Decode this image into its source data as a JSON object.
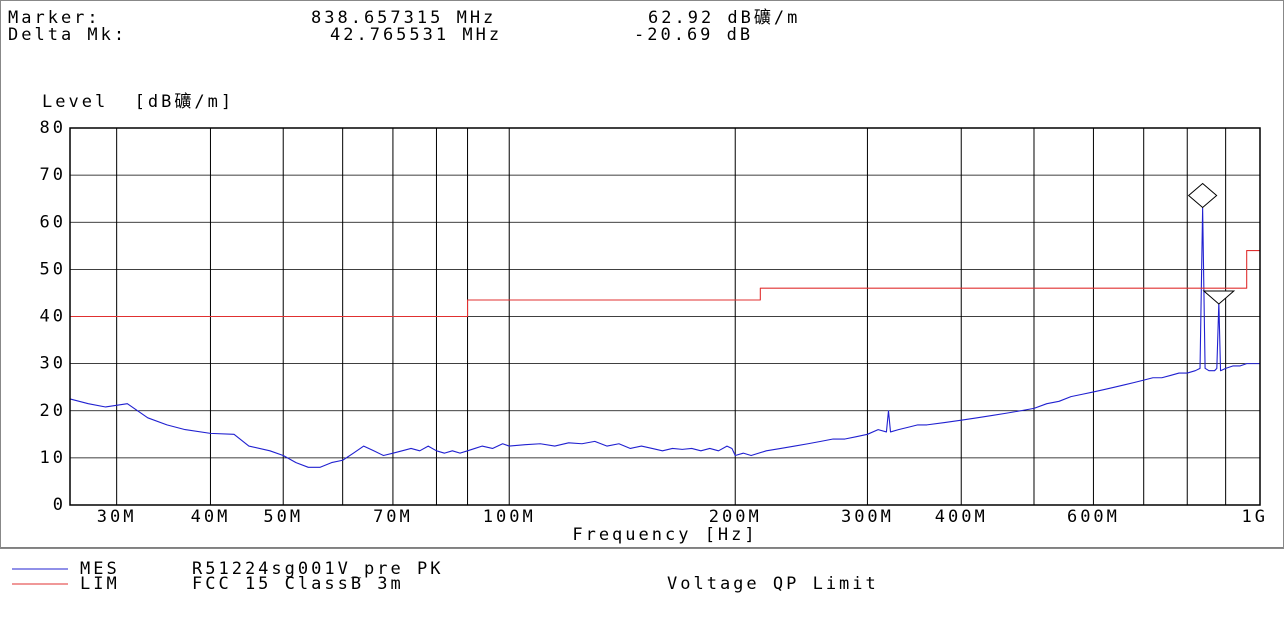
{
  "header": {
    "marker_label": "Marker:",
    "marker_freq": "838.657315 MHz",
    "marker_level": "62.92 dB礦/m",
    "delta_label": "Delta Mk:",
    "delta_freq": "42.765531 MHz",
    "delta_level": "-20.69 dB"
  },
  "legend": {
    "items": [
      {
        "code": "MES",
        "text": "R51224sg001V_pre  PK",
        "color": "#2020d0"
      },
      {
        "code": "LIM",
        "text": "FCC 15 ClassB 3m",
        "extra": "Voltage QP Limit",
        "color": "#e03030"
      }
    ]
  },
  "chart_data": {
    "type": "line",
    "ylabel": "Level  [dB礦/m]",
    "xlabel": "Frequency  [Hz]",
    "x_scale": "log",
    "xlim": [
      26000000,
      1000000000
    ],
    "ylim": [
      0,
      80
    ],
    "y_ticks": [
      0,
      10,
      20,
      30,
      40,
      50,
      60,
      70,
      80
    ],
    "x_ticks": [
      {
        "label": "30M",
        "value": 30000000
      },
      {
        "label": "40M",
        "value": 40000000
      },
      {
        "label": "50M",
        "value": 50000000
      },
      {
        "label": "70M",
        "value": 70000000
      },
      {
        "label": "100M",
        "value": 100000000
      },
      {
        "label": "200M",
        "value": 200000000
      },
      {
        "label": "300M",
        "value": 300000000
      },
      {
        "label": "400M",
        "value": 400000000
      },
      {
        "label": "600M",
        "value": 600000000
      },
      {
        "label": "1G",
        "value": 1000000000
      }
    ],
    "grid_lines_mhz": [
      30,
      40,
      50,
      60,
      70,
      80,
      88,
      100,
      200,
      300,
      400,
      500,
      600,
      700,
      800,
      900
    ],
    "series": [
      {
        "name": "MES",
        "color": "#2020d0",
        "x": [
          26000000.0,
          27500000.0,
          29000000.0,
          31000000.0,
          33000000.0,
          35000000.0,
          37000000.0,
          40000000.0,
          43000000.0,
          45000000.0,
          48000000.0,
          50000000.0,
          52000000.0,
          54000000.0,
          56000000.0,
          58000000.0,
          60000000.0,
          62000000.0,
          64000000.0,
          66000000.0,
          68000000.0,
          70000000.0,
          72000000.0,
          74000000.0,
          76000000.0,
          78000000.0,
          80000000.0,
          82000000.0,
          84000000.0,
          86000000.0,
          88000000.0,
          90000000.0,
          92000000.0,
          95000000.0,
          98000000.0,
          100000000.0,
          105000000.0,
          110000000.0,
          115000000.0,
          120000000.0,
          125000000.0,
          130000000.0,
          135000000.0,
          140000000.0,
          145000000.0,
          150000000.0,
          155000000.0,
          160000000.0,
          165000000.0,
          170000000.0,
          175000000.0,
          180000000.0,
          185000000.0,
          190000000.0,
          195000000.0,
          198000000.0,
          200000000.0,
          205000000.0,
          210000000.0,
          220000000.0,
          230000000.0,
          240000000.0,
          250000000.0,
          260000000.0,
          270000000.0,
          280000000.0,
          290000000.0,
          300000000.0,
          310000000.0,
          318000000.0,
          320000000.0,
          322000000.0,
          330000000.0,
          340000000.0,
          350000000.0,
          360000000.0,
          380000000.0,
          400000000.0,
          420000000.0,
          440000000.0,
          460000000.0,
          480000000.0,
          500000000.0,
          520000000.0,
          540000000.0,
          560000000.0,
          580000000.0,
          600000000.0,
          620000000.0,
          640000000.0,
          660000000.0,
          680000000.0,
          700000000.0,
          720000000.0,
          740000000.0,
          760000000.0,
          780000000.0,
          800000000.0,
          820000000.0,
          832000000.0,
          838660000.0,
          845000000.0,
          855000000.0,
          870000000.0,
          876000000.0,
          881420000.0,
          886000000.0,
          900000000.0,
          920000000.0,
          940000000.0,
          960000000.0,
          980000000.0,
          1000000000.0
        ],
        "y": [
          22.5,
          21.5,
          20.8,
          21.5,
          18.5,
          17,
          16,
          15.2,
          15,
          12.5,
          11.5,
          10.5,
          9,
          8,
          8,
          9,
          9.5,
          11,
          12.5,
          11.5,
          10.5,
          11,
          11.5,
          12,
          11.5,
          12.5,
          11.5,
          11,
          11.5,
          11,
          11.5,
          12,
          12.5,
          12,
          13,
          12.5,
          12.8,
          13,
          12.5,
          13.2,
          13,
          13.5,
          12.5,
          13,
          12,
          12.5,
          12,
          11.5,
          12,
          11.8,
          12,
          11.5,
          12,
          11.5,
          12.5,
          12,
          10.5,
          11,
          10.5,
          11.5,
          12,
          12.5,
          13,
          13.5,
          14,
          14,
          14.5,
          15,
          16,
          15.5,
          20,
          15.5,
          16,
          16.5,
          17,
          17,
          17.5,
          18,
          18.5,
          19,
          19.5,
          20,
          20.5,
          21.5,
          22,
          23,
          23.5,
          24,
          24.5,
          25,
          25.5,
          26,
          26.5,
          27,
          27,
          27.5,
          28,
          28,
          28.5,
          29,
          63,
          29,
          28.5,
          28.5,
          29,
          43,
          28.5,
          29,
          29.5,
          29.5,
          30,
          30,
          30
        ]
      },
      {
        "name": "LIM",
        "color": "#e03030",
        "x": [
          26000000.0,
          88000000.0,
          88000000.0,
          216000000.0,
          216000000.0,
          960000000.0,
          960000000.0,
          1000000000.0
        ],
        "y": [
          40,
          40,
          43.5,
          43.5,
          46,
          46,
          54,
          54
        ]
      }
    ],
    "markers": [
      {
        "shape": "diamond",
        "x": 838660000.0,
        "y": 62.92
      },
      {
        "shape": "triangle-down",
        "x": 881420000.0,
        "y": 42.23
      }
    ]
  }
}
